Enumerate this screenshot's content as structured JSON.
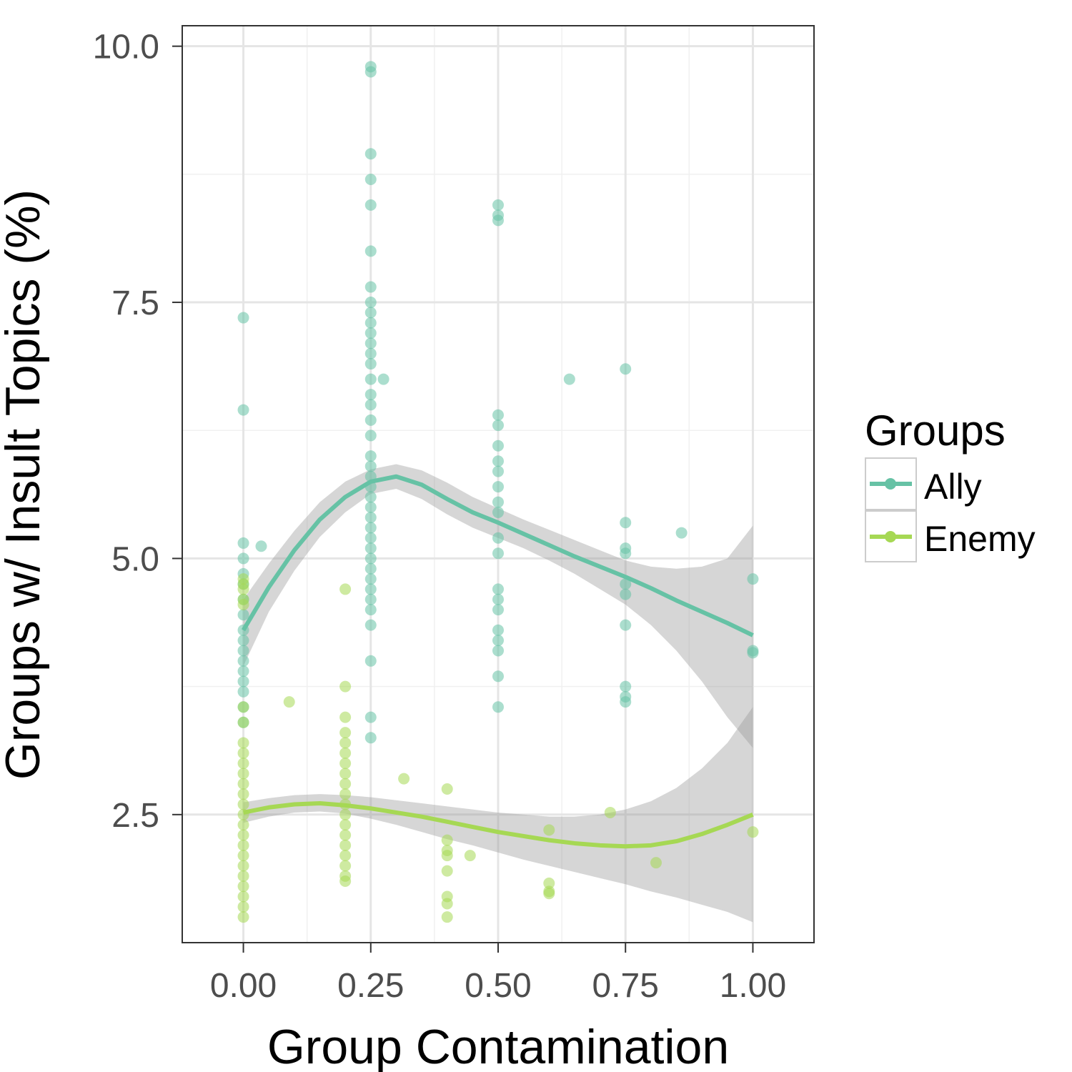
{
  "chart_data": {
    "type": "scatter",
    "xlabel": "Group Contamination",
    "ylabel": "Groups w/ Insult Topics (%)",
    "xlim": [
      -0.12,
      1.12
    ],
    "ylim": [
      1.25,
      10.2
    ],
    "x_ticks": [
      "0.00",
      "0.25",
      "0.50",
      "0.75",
      "1.00"
    ],
    "y_ticks": [
      "2.5",
      "5.0",
      "7.5",
      "10.0"
    ],
    "grid": true,
    "legend": {
      "title": "Groups",
      "position": "right",
      "entries": [
        {
          "label": "Ally",
          "color": "#66c2a5"
        },
        {
          "label": "Enemy",
          "color": "#a6d854"
        }
      ]
    },
    "series": [
      {
        "name": "Ally",
        "color": "#66c2a5",
        "points": [
          [
            0,
            7.35
          ],
          [
            0,
            6.45
          ],
          [
            0,
            5.15
          ],
          [
            0,
            5.0
          ],
          [
            0,
            4.85
          ],
          [
            0,
            4.75
          ],
          [
            0,
            4.6
          ],
          [
            0,
            4.45
          ],
          [
            0,
            4.3
          ],
          [
            0,
            4.2
          ],
          [
            0,
            4.1
          ],
          [
            0,
            4.0
          ],
          [
            0,
            3.9
          ],
          [
            0,
            3.8
          ],
          [
            0,
            3.7
          ],
          [
            0,
            3.55
          ],
          [
            0,
            3.4
          ],
          [
            0.035,
            5.12
          ],
          [
            0.25,
            9.8
          ],
          [
            0.25,
            9.75
          ],
          [
            0.25,
            8.95
          ],
          [
            0.25,
            8.7
          ],
          [
            0.25,
            8.45
          ],
          [
            0.25,
            8.0
          ],
          [
            0.25,
            7.65
          ],
          [
            0.25,
            7.5
          ],
          [
            0.25,
            7.4
          ],
          [
            0.25,
            7.3
          ],
          [
            0.25,
            7.2
          ],
          [
            0.25,
            7.1
          ],
          [
            0.25,
            7.0
          ],
          [
            0.25,
            6.9
          ],
          [
            0.25,
            6.75
          ],
          [
            0.25,
            6.6
          ],
          [
            0.25,
            6.5
          ],
          [
            0.25,
            6.35
          ],
          [
            0.25,
            6.2
          ],
          [
            0.25,
            6.0
          ],
          [
            0.25,
            5.9
          ],
          [
            0.25,
            5.8
          ],
          [
            0.25,
            5.7
          ],
          [
            0.25,
            5.6
          ],
          [
            0.25,
            5.5
          ],
          [
            0.25,
            5.4
          ],
          [
            0.25,
            5.3
          ],
          [
            0.25,
            5.2
          ],
          [
            0.25,
            5.1
          ],
          [
            0.25,
            5.0
          ],
          [
            0.25,
            4.9
          ],
          [
            0.25,
            4.8
          ],
          [
            0.25,
            4.7
          ],
          [
            0.25,
            4.6
          ],
          [
            0.25,
            4.5
          ],
          [
            0.25,
            4.35
          ],
          [
            0.25,
            4.0
          ],
          [
            0.25,
            3.45
          ],
          [
            0.25,
            3.25
          ],
          [
            0.275,
            6.75
          ],
          [
            0.5,
            8.45
          ],
          [
            0.5,
            8.35
          ],
          [
            0.5,
            8.3
          ],
          [
            0.5,
            6.4
          ],
          [
            0.5,
            6.3
          ],
          [
            0.5,
            6.1
          ],
          [
            0.5,
            5.95
          ],
          [
            0.5,
            5.85
          ],
          [
            0.5,
            5.7
          ],
          [
            0.5,
            5.55
          ],
          [
            0.5,
            5.45
          ],
          [
            0.5,
            5.2
          ],
          [
            0.5,
            5.05
          ],
          [
            0.5,
            4.7
          ],
          [
            0.5,
            4.6
          ],
          [
            0.5,
            4.5
          ],
          [
            0.5,
            4.3
          ],
          [
            0.5,
            4.2
          ],
          [
            0.5,
            4.1
          ],
          [
            0.5,
            3.85
          ],
          [
            0.5,
            3.55
          ],
          [
            0.64,
            6.75
          ],
          [
            0.75,
            6.85
          ],
          [
            0.75,
            5.35
          ],
          [
            0.75,
            5.1
          ],
          [
            0.75,
            5.05
          ],
          [
            0.75,
            4.75
          ],
          [
            0.75,
            4.65
          ],
          [
            0.75,
            4.35
          ],
          [
            0.75,
            3.75
          ],
          [
            0.75,
            3.65
          ],
          [
            0.75,
            3.6
          ],
          [
            0.86,
            5.25
          ],
          [
            1.0,
            4.8
          ],
          [
            1.0,
            4.1
          ],
          [
            1.0,
            4.08
          ]
        ],
        "fit": [
          [
            0,
            4.3
          ],
          [
            0.05,
            4.72
          ],
          [
            0.1,
            5.08
          ],
          [
            0.15,
            5.38
          ],
          [
            0.2,
            5.6
          ],
          [
            0.25,
            5.75
          ],
          [
            0.3,
            5.8
          ],
          [
            0.35,
            5.72
          ],
          [
            0.4,
            5.58
          ],
          [
            0.45,
            5.45
          ],
          [
            0.5,
            5.35
          ],
          [
            0.55,
            5.24
          ],
          [
            0.6,
            5.13
          ],
          [
            0.65,
            5.02
          ],
          [
            0.7,
            4.92
          ],
          [
            0.75,
            4.82
          ],
          [
            0.8,
            4.71
          ],
          [
            0.85,
            4.59
          ],
          [
            0.9,
            4.48
          ],
          [
            0.95,
            4.37
          ],
          [
            1.0,
            4.25
          ]
        ],
        "band_upper": [
          [
            0,
            4.6
          ],
          [
            0.05,
            4.95
          ],
          [
            0.1,
            5.27
          ],
          [
            0.15,
            5.55
          ],
          [
            0.2,
            5.75
          ],
          [
            0.25,
            5.87
          ],
          [
            0.3,
            5.92
          ],
          [
            0.35,
            5.86
          ],
          [
            0.4,
            5.74
          ],
          [
            0.45,
            5.6
          ],
          [
            0.5,
            5.49
          ],
          [
            0.55,
            5.38
          ],
          [
            0.6,
            5.28
          ],
          [
            0.65,
            5.18
          ],
          [
            0.7,
            5.08
          ],
          [
            0.75,
            4.98
          ],
          [
            0.8,
            4.92
          ],
          [
            0.85,
            4.9
          ],
          [
            0.9,
            4.92
          ],
          [
            0.95,
            5.0
          ],
          [
            1.0,
            5.32
          ]
        ],
        "band_lower": [
          [
            0,
            3.95
          ],
          [
            0.05,
            4.48
          ],
          [
            0.1,
            4.88
          ],
          [
            0.15,
            5.21
          ],
          [
            0.2,
            5.45
          ],
          [
            0.25,
            5.63
          ],
          [
            0.3,
            5.68
          ],
          [
            0.35,
            5.58
          ],
          [
            0.4,
            5.43
          ],
          [
            0.45,
            5.3
          ],
          [
            0.5,
            5.2
          ],
          [
            0.55,
            5.1
          ],
          [
            0.6,
            4.98
          ],
          [
            0.65,
            4.85
          ],
          [
            0.7,
            4.7
          ],
          [
            0.75,
            4.55
          ],
          [
            0.8,
            4.35
          ],
          [
            0.85,
            4.1
          ],
          [
            0.9,
            3.8
          ],
          [
            0.95,
            3.45
          ],
          [
            1.0,
            3.15
          ]
        ]
      },
      {
        "name": "Enemy",
        "color": "#a6d854",
        "points": [
          [
            0,
            4.8
          ],
          [
            0,
            4.75
          ],
          [
            0,
            4.7
          ],
          [
            0,
            4.6
          ],
          [
            0,
            4.55
          ],
          [
            0,
            3.55
          ],
          [
            0,
            3.4
          ],
          [
            0,
            3.2
          ],
          [
            0,
            3.1
          ],
          [
            0,
            3.0
          ],
          [
            0,
            2.9
          ],
          [
            0,
            2.8
          ],
          [
            0,
            2.7
          ],
          [
            0,
            2.6
          ],
          [
            0,
            2.5
          ],
          [
            0,
            2.4
          ],
          [
            0,
            2.3
          ],
          [
            0,
            2.2
          ],
          [
            0,
            2.1
          ],
          [
            0,
            2.0
          ],
          [
            0,
            1.9
          ],
          [
            0,
            1.8
          ],
          [
            0,
            1.7
          ],
          [
            0,
            1.6
          ],
          [
            0,
            1.5
          ],
          [
            0.09,
            3.6
          ],
          [
            0.2,
            4.7
          ],
          [
            0.2,
            3.75
          ],
          [
            0.2,
            3.45
          ],
          [
            0.2,
            3.3
          ],
          [
            0.2,
            3.2
          ],
          [
            0.2,
            3.1
          ],
          [
            0.2,
            3.0
          ],
          [
            0.2,
            2.9
          ],
          [
            0.2,
            2.8
          ],
          [
            0.2,
            2.7
          ],
          [
            0.2,
            2.6
          ],
          [
            0.2,
            2.5
          ],
          [
            0.2,
            2.4
          ],
          [
            0.2,
            2.3
          ],
          [
            0.2,
            2.2
          ],
          [
            0.2,
            2.1
          ],
          [
            0.2,
            2.0
          ],
          [
            0.2,
            1.9
          ],
          [
            0.2,
            1.85
          ],
          [
            0.315,
            2.85
          ],
          [
            0.4,
            2.75
          ],
          [
            0.4,
            2.25
          ],
          [
            0.4,
            2.15
          ],
          [
            0.4,
            2.1
          ],
          [
            0.4,
            1.95
          ],
          [
            0.4,
            1.7
          ],
          [
            0.4,
            1.63
          ],
          [
            0.4,
            1.5
          ],
          [
            0.445,
            2.1
          ],
          [
            0.6,
            2.35
          ],
          [
            0.6,
            1.83
          ],
          [
            0.6,
            1.75
          ],
          [
            0.6,
            1.73
          ],
          [
            0.72,
            2.52
          ],
          [
            0.81,
            2.03
          ],
          [
            1.0,
            2.33
          ]
        ],
        "fit": [
          [
            0,
            2.52
          ],
          [
            0.05,
            2.57
          ],
          [
            0.1,
            2.6
          ],
          [
            0.15,
            2.61
          ],
          [
            0.2,
            2.59
          ],
          [
            0.25,
            2.56
          ],
          [
            0.3,
            2.52
          ],
          [
            0.35,
            2.48
          ],
          [
            0.4,
            2.43
          ],
          [
            0.45,
            2.38
          ],
          [
            0.5,
            2.33
          ],
          [
            0.55,
            2.29
          ],
          [
            0.6,
            2.25
          ],
          [
            0.65,
            2.22
          ],
          [
            0.7,
            2.2
          ],
          [
            0.75,
            2.19
          ],
          [
            0.8,
            2.2
          ],
          [
            0.85,
            2.24
          ],
          [
            0.9,
            2.31
          ],
          [
            0.95,
            2.4
          ],
          [
            1.0,
            2.5
          ]
        ],
        "band_upper": [
          [
            0,
            2.62
          ],
          [
            0.05,
            2.66
          ],
          [
            0.1,
            2.69
          ],
          [
            0.15,
            2.7
          ],
          [
            0.2,
            2.69
          ],
          [
            0.25,
            2.67
          ],
          [
            0.3,
            2.64
          ],
          [
            0.35,
            2.61
          ],
          [
            0.4,
            2.58
          ],
          [
            0.45,
            2.55
          ],
          [
            0.5,
            2.52
          ],
          [
            0.55,
            2.5
          ],
          [
            0.6,
            2.48
          ],
          [
            0.65,
            2.48
          ],
          [
            0.7,
            2.5
          ],
          [
            0.75,
            2.55
          ],
          [
            0.8,
            2.63
          ],
          [
            0.85,
            2.76
          ],
          [
            0.9,
            2.95
          ],
          [
            0.95,
            3.2
          ],
          [
            1.0,
            3.55
          ]
        ],
        "band_lower": [
          [
            0,
            2.42
          ],
          [
            0.05,
            2.48
          ],
          [
            0.1,
            2.52
          ],
          [
            0.15,
            2.53
          ],
          [
            0.2,
            2.51
          ],
          [
            0.25,
            2.46
          ],
          [
            0.3,
            2.4
          ],
          [
            0.35,
            2.33
          ],
          [
            0.4,
            2.26
          ],
          [
            0.45,
            2.2
          ],
          [
            0.5,
            2.13
          ],
          [
            0.55,
            2.06
          ],
          [
            0.6,
            2.0
          ],
          [
            0.65,
            1.94
          ],
          [
            0.7,
            1.88
          ],
          [
            0.75,
            1.82
          ],
          [
            0.8,
            1.75
          ],
          [
            0.85,
            1.69
          ],
          [
            0.9,
            1.62
          ],
          [
            0.95,
            1.55
          ],
          [
            1.0,
            1.45
          ]
        ]
      }
    ]
  }
}
